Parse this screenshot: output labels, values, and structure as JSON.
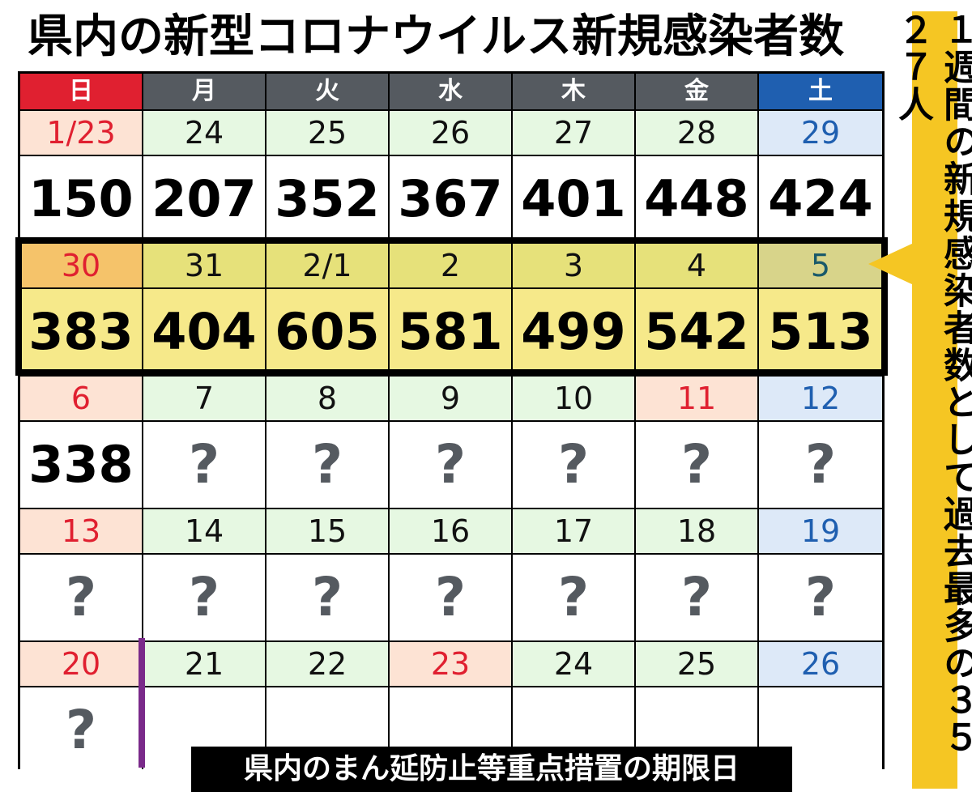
{
  "title": "県内の新型コロナウイルス新規感染者数",
  "side_note": "１週間の新規感染者数として過去最多の３５２７人",
  "bottom_note": "県内のまん延防止等重点措置の期限日",
  "colors": {
    "sun_header": "#e02030",
    "weekday_header": "#555a60",
    "sat_header": "#1f5fb0",
    "sun_date_bg": "#fde3d4",
    "weekday_date_bg": "#e6f8e2",
    "sat_date_bg": "#dde9f8",
    "highlight_bg": "#f6e98a",
    "highlight_date_bg": "#e6e17a",
    "highlight_sun_date_bg": "#f5c36a",
    "highlight_sat_date_bg": "#d8d48a",
    "red_text": "#e02030",
    "blue_text": "#1f5fb0",
    "teal_text": "#1a5a6a",
    "banner": "#f5c623",
    "purple_marker": "#7a2a8a"
  },
  "weekdays": [
    "日",
    "月",
    "火",
    "水",
    "木",
    "金",
    "土"
  ],
  "weeks": [
    {
      "highlight": false,
      "days": [
        {
          "date": "1/23",
          "value": "150",
          "date_color": "red",
          "date_bg": "sun"
        },
        {
          "date": "24",
          "value": "207",
          "date_color": "black",
          "date_bg": "weekday"
        },
        {
          "date": "25",
          "value": "352",
          "date_color": "black",
          "date_bg": "weekday"
        },
        {
          "date": "26",
          "value": "367",
          "date_color": "black",
          "date_bg": "weekday"
        },
        {
          "date": "27",
          "value": "401",
          "date_color": "black",
          "date_bg": "weekday"
        },
        {
          "date": "28",
          "value": "448",
          "date_color": "black",
          "date_bg": "weekday"
        },
        {
          "date": "29",
          "value": "424",
          "date_color": "blue",
          "date_bg": "sat"
        }
      ]
    },
    {
      "highlight": true,
      "days": [
        {
          "date": "30",
          "value": "383",
          "date_color": "red",
          "date_bg": "hsun"
        },
        {
          "date": "31",
          "value": "404",
          "date_color": "black",
          "date_bg": "hday"
        },
        {
          "date": "2/1",
          "value": "605",
          "date_color": "black",
          "date_bg": "hday"
        },
        {
          "date": "2",
          "value": "581",
          "date_color": "black",
          "date_bg": "hday"
        },
        {
          "date": "3",
          "value": "499",
          "date_color": "black",
          "date_bg": "hday"
        },
        {
          "date": "4",
          "value": "542",
          "date_color": "black",
          "date_bg": "hday"
        },
        {
          "date": "5",
          "value": "513",
          "date_color": "teal",
          "date_bg": "hsat"
        }
      ]
    },
    {
      "highlight": false,
      "days": [
        {
          "date": "6",
          "value": "338",
          "date_color": "red",
          "date_bg": "sun"
        },
        {
          "date": "7",
          "value": "?",
          "date_color": "black",
          "date_bg": "weekday"
        },
        {
          "date": "8",
          "value": "?",
          "date_color": "black",
          "date_bg": "weekday"
        },
        {
          "date": "9",
          "value": "?",
          "date_color": "black",
          "date_bg": "weekday"
        },
        {
          "date": "10",
          "value": "?",
          "date_color": "black",
          "date_bg": "weekday"
        },
        {
          "date": "11",
          "value": "?",
          "date_color": "red",
          "date_bg": "sun"
        },
        {
          "date": "12",
          "value": "?",
          "date_color": "blue",
          "date_bg": "sat"
        }
      ]
    },
    {
      "highlight": false,
      "days": [
        {
          "date": "13",
          "value": "?",
          "date_color": "red",
          "date_bg": "sun"
        },
        {
          "date": "14",
          "value": "?",
          "date_color": "black",
          "date_bg": "weekday"
        },
        {
          "date": "15",
          "value": "?",
          "date_color": "black",
          "date_bg": "weekday"
        },
        {
          "date": "16",
          "value": "?",
          "date_color": "black",
          "date_bg": "weekday"
        },
        {
          "date": "17",
          "value": "?",
          "date_color": "black",
          "date_bg": "weekday"
        },
        {
          "date": "18",
          "value": "?",
          "date_color": "black",
          "date_bg": "weekday"
        },
        {
          "date": "19",
          "value": "?",
          "date_color": "blue",
          "date_bg": "sat"
        }
      ]
    },
    {
      "highlight": false,
      "days": [
        {
          "date": "20",
          "value": "?",
          "date_color": "red",
          "date_bg": "sun"
        },
        {
          "date": "21",
          "value": "",
          "date_color": "black",
          "date_bg": "weekday"
        },
        {
          "date": "22",
          "value": "",
          "date_color": "black",
          "date_bg": "weekday"
        },
        {
          "date": "23",
          "value": "",
          "date_color": "red",
          "date_bg": "sun"
        },
        {
          "date": "24",
          "value": "",
          "date_color": "black",
          "date_bg": "weekday"
        },
        {
          "date": "25",
          "value": "",
          "date_color": "black",
          "date_bg": "weekday"
        },
        {
          "date": "26",
          "value": "",
          "date_color": "blue",
          "date_bg": "sat"
        }
      ]
    }
  ]
}
